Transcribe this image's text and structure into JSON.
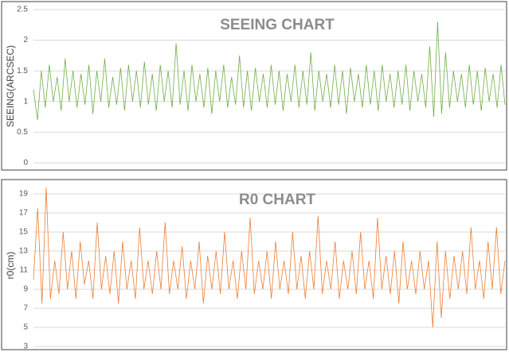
{
  "chart_data": [
    {
      "type": "line",
      "title": "SEEING CHART",
      "y_label": "SEEING(ARCSEC)",
      "color": "#70ad47",
      "grid": true,
      "ylim": [
        0,
        2.5
      ],
      "yticks": [
        0,
        0.5,
        1,
        1.5,
        2,
        2.5
      ],
      "values": [
        1.2,
        0.7,
        1.5,
        0.9,
        1.6,
        1.0,
        1.4,
        0.85,
        1.7,
        1.0,
        1.5,
        0.9,
        1.45,
        0.95,
        1.6,
        0.8,
        1.5,
        1.0,
        1.7,
        0.9,
        1.4,
        0.95,
        1.55,
        0.85,
        1.6,
        1.0,
        1.5,
        0.9,
        1.65,
        0.95,
        1.45,
        0.85,
        1.6,
        1.0,
        1.5,
        0.9,
        1.95,
        0.95,
        1.5,
        0.85,
        1.6,
        1.0,
        1.45,
        0.9,
        1.55,
        0.8,
        1.5,
        1.0,
        1.6,
        0.9,
        1.4,
        0.95,
        1.75,
        0.9,
        1.5,
        0.85,
        1.55,
        1.0,
        1.45,
        0.9,
        1.6,
        0.95,
        1.5,
        0.85,
        1.45,
        1.0,
        1.6,
        0.9,
        1.5,
        0.95,
        1.8,
        0.85,
        1.5,
        1.0,
        1.45,
        0.9,
        1.6,
        0.95,
        1.5,
        0.8,
        1.55,
        1.0,
        1.45,
        0.9,
        1.6,
        0.95,
        1.5,
        0.85,
        1.6,
        1.0,
        1.45,
        0.9,
        1.5,
        0.95,
        1.6,
        0.85,
        1.5,
        1.0,
        1.45,
        0.9,
        1.9,
        0.75,
        2.3,
        0.8,
        1.8,
        0.9,
        1.5,
        1.0,
        1.45,
        0.9,
        1.6,
        0.95,
        1.5,
        0.85,
        1.55,
        1.0,
        1.45,
        0.9,
        1.6,
        0.95
      ]
    },
    {
      "type": "line",
      "title": "R0 CHART",
      "y_label": "r0(cm)",
      "color": "#ed7d31",
      "grid": true,
      "ylim": [
        3,
        20
      ],
      "yticks": [
        3,
        5,
        7,
        9,
        11,
        13,
        15,
        17,
        19
      ],
      "values": [
        10,
        17.5,
        7.5,
        19.7,
        8,
        12,
        8.5,
        15,
        9,
        13,
        8,
        14,
        9.5,
        12,
        8,
        16,
        9,
        12.5,
        8.5,
        13,
        7.5,
        14,
        9,
        12,
        8,
        15.5,
        9,
        12,
        8.5,
        13,
        9,
        16,
        8.5,
        12,
        9,
        13.5,
        8,
        12,
        9,
        14,
        7.5,
        12.5,
        9,
        13,
        8.5,
        15,
        9,
        12,
        8,
        13,
        9,
        16.5,
        8.5,
        12,
        9,
        13,
        8,
        14,
        9,
        12,
        8.5,
        15,
        9,
        12.5,
        8,
        13,
        9,
        16.7,
        8.5,
        12,
        9,
        14,
        8,
        12,
        9,
        13,
        8.5,
        15,
        9,
        12,
        8,
        16.5,
        9,
        12.5,
        8.5,
        13,
        7.5,
        14,
        9,
        12,
        8.5,
        13,
        9,
        12,
        5,
        14,
        6,
        13,
        8,
        12.5,
        9,
        13,
        8.5,
        15.5,
        9,
        12,
        8,
        14,
        9,
        15.5,
        8.5,
        12
      ]
    }
  ]
}
